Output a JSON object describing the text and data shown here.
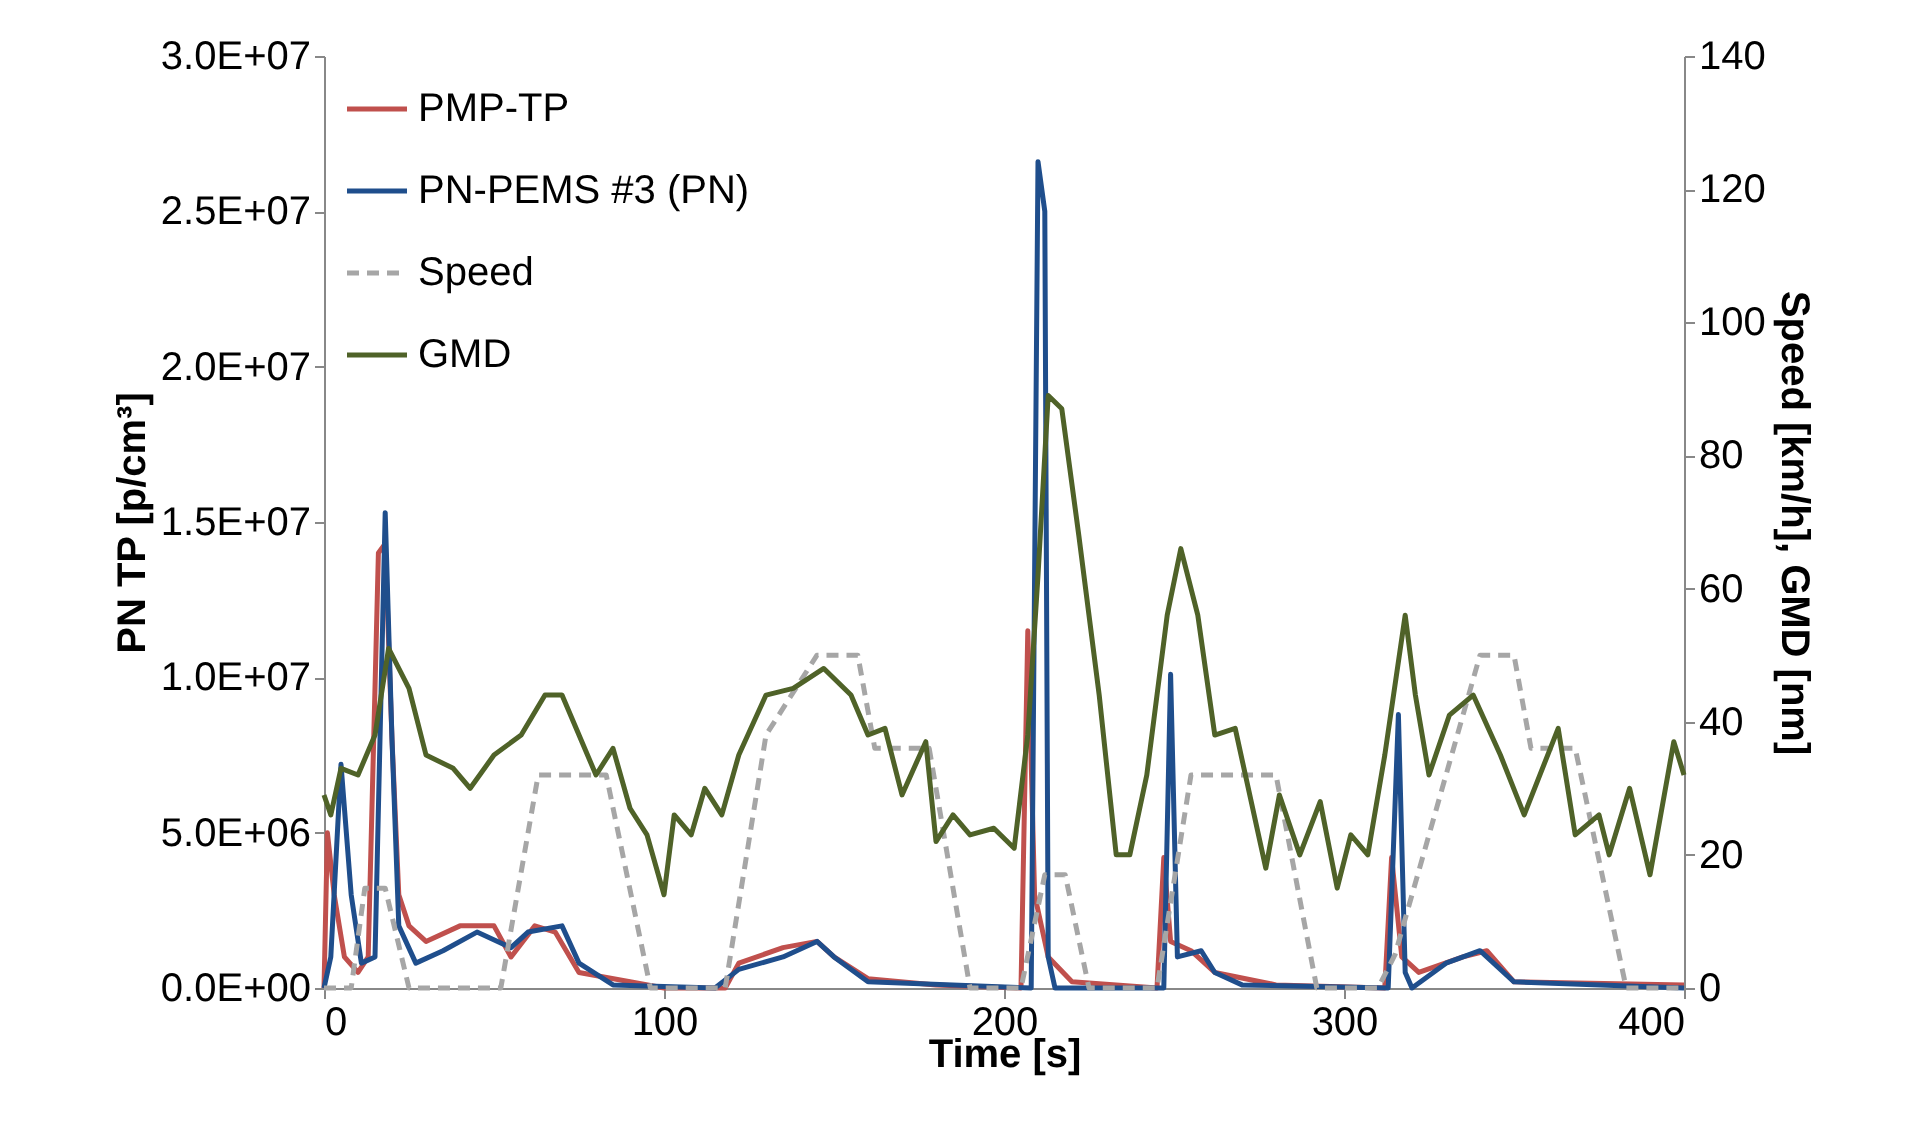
{
  "chart_data": {
    "type": "line",
    "xlabel": "Time [s]",
    "ylabel": "PN TP [p/cm³]",
    "y2label": "Speed [km/h], GMD [nm]",
    "xlim": [
      0,
      400
    ],
    "xticks": [
      0,
      100,
      200,
      300,
      400
    ],
    "ylim": [
      0,
      30000000
    ],
    "yticks": [
      {
        "value": 0,
        "label": "0.0E+00"
      },
      {
        "value": 5000000,
        "label": "5.0E+06"
      },
      {
        "value": 10000000,
        "label": "1.0E+07"
      },
      {
        "value": 15000000,
        "label": "1.5E+07"
      },
      {
        "value": 20000000,
        "label": "2.0E+07"
      },
      {
        "value": 25000000,
        "label": "2.5E+07"
      },
      {
        "value": 30000000,
        "label": "3.0E+07"
      }
    ],
    "y2lim": [
      0,
      140
    ],
    "y2ticks": [
      0,
      20,
      40,
      60,
      80,
      100,
      120,
      140
    ],
    "grid": false,
    "legend": "top left",
    "marker": "none",
    "series": [
      {
        "name": "PMP-TP",
        "color": "#c0504d",
        "line_style": "solid",
        "x": [
          0,
          1,
          3,
          6,
          10,
          13,
          16,
          18,
          20,
          22,
          25,
          30,
          40,
          50,
          55,
          62,
          68,
          75,
          90,
          100,
          118,
          122,
          135,
          145,
          150,
          160,
          180,
          205,
          207,
          209,
          213,
          220,
          245,
          247,
          249,
          255,
          262,
          280,
          312,
          314,
          317,
          322,
          335,
          342,
          350,
          400
        ],
        "values": [
          0,
          5000000,
          3000000,
          1000000,
          500000,
          1000000,
          14000000,
          14300000,
          8000000,
          3000000,
          2000000,
          1500000,
          2000000,
          2000000,
          1000000,
          2000000,
          1800000,
          500000,
          200000,
          0,
          0,
          800000,
          1300000,
          1500000,
          1000000,
          300000,
          100000,
          0,
          11500000,
          3000000,
          1000000,
          200000,
          0,
          4200000,
          1500000,
          1200000,
          500000,
          100000,
          0,
          4200000,
          1000000,
          500000,
          1000000,
          1200000,
          200000,
          100000
        ]
      },
      {
        "name": "PN-PEMS #3 (PN)",
        "color": "#1f4e8c",
        "line_style": "solid",
        "x": [
          0,
          2,
          5,
          8,
          11,
          15,
          18,
          20,
          22,
          27,
          35,
          45,
          55,
          60,
          70,
          75,
          85,
          115,
          122,
          135,
          145,
          150,
          160,
          208,
          210,
          212,
          213,
          215,
          247,
          249,
          251,
          258,
          262,
          270,
          313,
          316,
          318,
          320,
          330,
          340,
          350,
          400
        ],
        "values": [
          0,
          1000000,
          7200000,
          3000000,
          800000,
          1000000,
          15300000,
          8000000,
          2000000,
          800000,
          1200000,
          1800000,
          1300000,
          1800000,
          2000000,
          800000,
          100000,
          0,
          600000,
          1000000,
          1500000,
          1000000,
          200000,
          0,
          26600000,
          25000000,
          1000000,
          0,
          0,
          10100000,
          1000000,
          1200000,
          500000,
          100000,
          0,
          8800000,
          500000,
          0,
          800000,
          1200000,
          200000,
          0
        ]
      },
      {
        "name": "Speed",
        "color": "#a6a6a6",
        "line_style": "dashed",
        "axis": "y2",
        "x": [
          0,
          8,
          12,
          18,
          25,
          52,
          63,
          83,
          96,
          118,
          130,
          145,
          157,
          162,
          178,
          190,
          205,
          212,
          218,
          225,
          245,
          255,
          280,
          292,
          310,
          315,
          340,
          350,
          355,
          368,
          383,
          400
        ],
        "values": [
          0,
          0,
          15,
          15,
          0,
          0,
          32,
          32,
          0,
          0,
          38,
          50,
          50,
          36,
          36,
          0,
          0,
          17,
          17,
          0,
          0,
          32,
          32,
          0,
          0,
          5,
          50,
          50,
          36,
          36,
          0,
          0
        ]
      },
      {
        "name": "GMD",
        "color": "#4f6228",
        "line_style": "solid",
        "axis": "y2",
        "x": [
          0,
          2,
          5,
          10,
          15,
          19,
          25,
          30,
          38,
          43,
          50,
          58,
          65,
          70,
          75,
          80,
          85,
          90,
          95,
          100,
          103,
          108,
          112,
          117,
          122,
          130,
          138,
          147,
          155,
          160,
          165,
          170,
          177,
          180,
          185,
          190,
          197,
          203,
          207,
          210,
          213,
          217,
          222,
          228,
          233,
          237,
          242,
          248,
          252,
          257,
          262,
          268,
          277,
          281,
          287,
          293,
          298,
          302,
          307,
          312,
          318,
          321,
          325,
          331,
          338,
          346,
          353,
          363,
          368,
          375,
          378,
          384,
          390,
          397,
          400
        ],
        "values": [
          29,
          26,
          33,
          32,
          38,
          51,
          45,
          35,
          33,
          30,
          35,
          38,
          44,
          44,
          38,
          32,
          36,
          27,
          23,
          14,
          26,
          23,
          30,
          26,
          35,
          44,
          45,
          48,
          44,
          38,
          39,
          29,
          37,
          22,
          26,
          23,
          24,
          21,
          38,
          62,
          89,
          87,
          68,
          44,
          20,
          20,
          32,
          56,
          66,
          56,
          38,
          39,
          18,
          29,
          20,
          28,
          15,
          23,
          20,
          35,
          56,
          44,
          32,
          41,
          44,
          35,
          26,
          39,
          23,
          26,
          20,
          30,
          17,
          37,
          32
        ]
      }
    ]
  }
}
